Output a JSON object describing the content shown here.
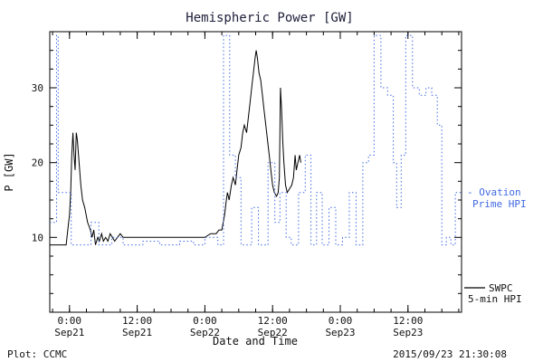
{
  "title": "Hemispheric Power [GW]",
  "axes": {
    "ylabel": "P [GW]",
    "xlabel": "Date and Time",
    "ylim": [
      0,
      37.5
    ],
    "xlim_hours": [
      -3.5,
      69.5
    ],
    "x_minor_step_hours": 3,
    "y_minor_step": 2.5,
    "y_ticks": [
      {
        "value": 10,
        "label": "10"
      },
      {
        "value": 20,
        "label": "20"
      },
      {
        "value": 30,
        "label": "30"
      }
    ],
    "x_ticks": [
      {
        "hour": 0,
        "time": "0:00",
        "date": "Sep21"
      },
      {
        "hour": 12,
        "time": "12:00",
        "date": "Sep21"
      },
      {
        "hour": 24,
        "time": "0:00",
        "date": "Sep22"
      },
      {
        "hour": 36,
        "time": "12:00",
        "date": "Sep22"
      },
      {
        "hour": 48,
        "time": "0:00",
        "date": "Sep23"
      },
      {
        "hour": 60,
        "time": "12:00",
        "date": "Sep23"
      }
    ]
  },
  "legend": {
    "ovation": {
      "line1": "- Ovation",
      "line2": "Prime HPI",
      "color": "#4169e1"
    },
    "swpc": {
      "line1": "SWPC",
      "line2": "5-min HPI",
      "color": "#000000"
    }
  },
  "footer": {
    "left": "Plot: CCMC",
    "right": "2015/09/23 21:30:08"
  },
  "chart_data": {
    "type": "line",
    "title": "Hemispheric Power [GW]",
    "xlabel": "Date and Time",
    "ylabel": "P [GW]",
    "ylim": [
      0,
      37.5
    ],
    "x_unit": "hours since 2015-09-21 00:00",
    "legend_position": "right",
    "grid": false,
    "series": [
      {
        "name": "SWPC 5-min HPI",
        "color": "#000000",
        "line_style": "solid",
        "step": "none",
        "points": [
          [
            -3.5,
            9
          ],
          [
            -0.6,
            9
          ],
          [
            -0.3,
            11
          ],
          [
            0,
            13
          ],
          [
            0.2,
            16
          ],
          [
            0.4,
            21
          ],
          [
            0.6,
            24
          ],
          [
            0.8,
            21
          ],
          [
            1,
            19
          ],
          [
            1.2,
            24
          ],
          [
            1.4,
            23
          ],
          [
            1.7,
            20
          ],
          [
            2,
            17
          ],
          [
            2.3,
            15
          ],
          [
            2.7,
            14
          ],
          [
            3.2,
            12
          ],
          [
            3.7,
            11
          ],
          [
            4,
            10
          ],
          [
            4.3,
            11
          ],
          [
            4.6,
            9
          ],
          [
            5,
            10
          ],
          [
            5.3,
            9.5
          ],
          [
            5.7,
            10.5
          ],
          [
            6,
            9.5
          ],
          [
            6.4,
            10
          ],
          [
            6.8,
            9.5
          ],
          [
            7.2,
            10.5
          ],
          [
            7.6,
            10
          ],
          [
            8,
            9.5
          ],
          [
            8.5,
            10
          ],
          [
            9,
            10.5
          ],
          [
            9.5,
            10
          ],
          [
            10,
            10
          ],
          [
            12,
            10
          ],
          [
            15,
            10
          ],
          [
            18,
            10
          ],
          [
            21,
            10
          ],
          [
            24,
            10
          ],
          [
            25,
            10.5
          ],
          [
            26,
            10.5
          ],
          [
            26.5,
            11
          ],
          [
            27,
            11
          ],
          [
            27.5,
            13
          ],
          [
            27.8,
            15
          ],
          [
            28,
            16
          ],
          [
            28.3,
            15
          ],
          [
            28.7,
            17
          ],
          [
            29,
            18
          ],
          [
            29.4,
            17
          ],
          [
            29.7,
            19
          ],
          [
            30,
            21
          ],
          [
            30.4,
            22
          ],
          [
            30.7,
            24
          ],
          [
            31,
            25
          ],
          [
            31.4,
            24
          ],
          [
            31.7,
            26
          ],
          [
            32,
            28
          ],
          [
            32.3,
            30
          ],
          [
            32.6,
            32
          ],
          [
            32.9,
            34
          ],
          [
            33.1,
            35
          ],
          [
            33.3,
            34
          ],
          [
            33.6,
            32
          ],
          [
            33.9,
            31
          ],
          [
            34.2,
            29
          ],
          [
            34.5,
            27
          ],
          [
            34.8,
            25
          ],
          [
            35.1,
            23
          ],
          [
            35.4,
            21
          ],
          [
            35.7,
            19
          ],
          [
            36,
            17
          ],
          [
            36.3,
            16
          ],
          [
            36.7,
            15.5
          ],
          [
            37,
            16
          ],
          [
            37.2,
            18
          ],
          [
            37.4,
            30
          ],
          [
            37.6,
            27
          ],
          [
            37.8,
            23
          ],
          [
            38,
            20
          ],
          [
            38.3,
            17
          ],
          [
            38.6,
            16
          ],
          [
            39,
            16.5
          ],
          [
            39.4,
            17
          ],
          [
            39.7,
            18
          ],
          [
            40,
            21
          ],
          [
            40.2,
            19
          ],
          [
            40.5,
            20
          ],
          [
            40.8,
            21
          ],
          [
            41,
            20
          ]
        ]
      },
      {
        "name": "Ovation Prime HPI",
        "color": "#4169e1",
        "line_style": "dotted",
        "step": "after",
        "points": [
          [
            -3.5,
            12
          ],
          [
            -2.3,
            37
          ],
          [
            -2,
            16
          ],
          [
            0.3,
            9
          ],
          [
            3.8,
            12
          ],
          [
            5.2,
            9
          ],
          [
            7.5,
            10
          ],
          [
            9.5,
            9
          ],
          [
            13,
            9.5
          ],
          [
            16,
            9
          ],
          [
            19.5,
            9.5
          ],
          [
            22,
            9
          ],
          [
            24,
            10
          ],
          [
            26.3,
            9
          ],
          [
            27.3,
            37
          ],
          [
            28.4,
            21
          ],
          [
            29.4,
            18
          ],
          [
            30.4,
            9
          ],
          [
            32.3,
            14
          ],
          [
            33.5,
            9
          ],
          [
            35.2,
            20
          ],
          [
            36.4,
            12
          ],
          [
            37.3,
            16
          ],
          [
            38.4,
            10
          ],
          [
            39.3,
            9
          ],
          [
            40.6,
            16
          ],
          [
            41.8,
            21
          ],
          [
            42.8,
            9
          ],
          [
            43.8,
            16
          ],
          [
            44.8,
            9
          ],
          [
            46,
            14
          ],
          [
            47.2,
            9
          ],
          [
            48.4,
            10
          ],
          [
            49.6,
            16
          ],
          [
            50.8,
            9
          ],
          [
            52,
            20
          ],
          [
            53,
            21
          ],
          [
            54,
            37
          ],
          [
            55.2,
            30
          ],
          [
            56.4,
            29
          ],
          [
            57.4,
            20
          ],
          [
            58,
            14
          ],
          [
            58.8,
            21
          ],
          [
            59.6,
            37
          ],
          [
            60.8,
            30
          ],
          [
            62,
            29
          ],
          [
            63.2,
            30
          ],
          [
            64.2,
            29
          ],
          [
            65.2,
            25
          ],
          [
            66,
            9
          ],
          [
            66.8,
            10
          ],
          [
            67.6,
            9
          ],
          [
            68.4,
            16
          ]
        ]
      }
    ]
  }
}
